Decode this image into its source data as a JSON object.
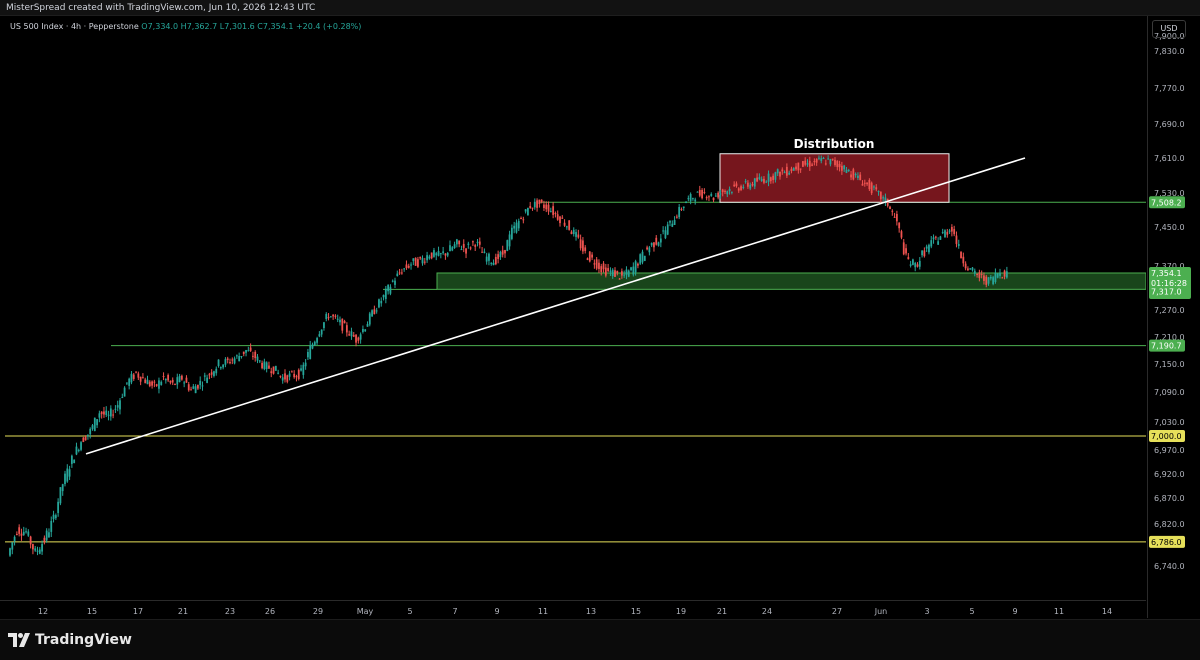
{
  "header": {
    "credit": "MisterSpread created with TradingView.com, Jun 10, 2026 12:43 UTC",
    "symbol": "US 500 Index · 4h · Pepperstone",
    "ohlc": "O7,334.0 H7,362.7 L7,301.6 C7,354.1 +20.4 (+0.28%)",
    "currency": "USD"
  },
  "footer": {
    "logo_text": "TradingView"
  },
  "colors": {
    "up": "#26a69a",
    "down": "#ef5350",
    "level_line": "#4caf50",
    "round_line": "#e6e05a",
    "zone_fill": "#2e7d32",
    "distribution_fill": "#8b1a22",
    "trendline": "#ffffff"
  },
  "chart_data": {
    "type": "candlestick",
    "title": "US 500 Index · 4h · Pepperstone",
    "y_axis_ticks": [
      7900,
      7830,
      7770,
      7690,
      7610,
      7530,
      7450,
      7370,
      7270,
      7210,
      7150,
      7090,
      7030,
      6970,
      6920,
      6870,
      6820,
      6740
    ],
    "y_axis_labels": [
      "7,900.0",
      "7,830.0",
      "7,770.0",
      "7,690.0",
      "7,610.0",
      "7,530.0",
      "7,450.0",
      "7,370.0",
      "7,270.0",
      "7,210.0",
      "7,150.0",
      "7,090.0",
      "7,030.0",
      "6,970.0",
      "6,920.0",
      "6,870.0",
      "6,820.0",
      "6,740.0"
    ],
    "x_axis_labels": [
      "12",
      "15",
      "17",
      "21",
      "23",
      "26",
      "29",
      "May",
      "5",
      "7",
      "9",
      "11",
      "13",
      "15",
      "19",
      "21",
      "24",
      "27",
      "Jun",
      "3",
      "5",
      "9",
      "11",
      "14",
      "17"
    ],
    "horizontal_levels": [
      {
        "label": "7,508.2",
        "value": 7508.2,
        "kind": "level"
      },
      {
        "label": "7,190.7",
        "value": 7190.7,
        "kind": "level"
      },
      {
        "label": "7,000.0",
        "value": 7000.0,
        "kind": "round"
      },
      {
        "label": "6,786.0",
        "value": 6786.0,
        "kind": "round"
      }
    ],
    "support_zone": {
      "top": 7354.1,
      "bottom": 7317.0,
      "labels": [
        "7,354.1",
        "01:16:28",
        "7,317.0"
      ]
    },
    "distribution_zone": {
      "label": "Distribution",
      "top": 7620,
      "bottom": 7508.2
    },
    "trendline": {
      "from_value": 6962,
      "to_value": 7610
    },
    "path_values": [
      6760,
      6810,
      6805,
      6765,
      6790,
      6830,
      6900,
      6950,
      6990,
      7010,
      7050,
      7040,
      7065,
      7110,
      7130,
      7115,
      7100,
      7120,
      7105,
      7120,
      7095,
      7110,
      7130,
      7150,
      7155,
      7165,
      7180,
      7165,
      7145,
      7140,
      7120,
      7125,
      7130,
      7185,
      7225,
      7260,
      7245,
      7225,
      7205,
      7235,
      7270,
      7300,
      7335,
      7360,
      7375,
      7380,
      7395,
      7390,
      7400,
      7415,
      7405,
      7420,
      7390,
      7380,
      7395,
      7440,
      7470,
      7500,
      7505,
      7495,
      7475,
      7455,
      7430,
      7395,
      7380,
      7360,
      7355,
      7345,
      7360,
      7385,
      7410,
      7425,
      7450,
      7480,
      7510,
      7525,
      7530,
      7520,
      7535,
      7540,
      7545,
      7550,
      7560,
      7565,
      7575,
      7580,
      7590,
      7595,
      7600,
      7605,
      7600,
      7590,
      7575,
      7560,
      7545,
      7525,
      7505,
      7460,
      7385,
      7370,
      7400,
      7420,
      7435,
      7450,
      7390,
      7360,
      7345,
      7335,
      7354
    ]
  }
}
